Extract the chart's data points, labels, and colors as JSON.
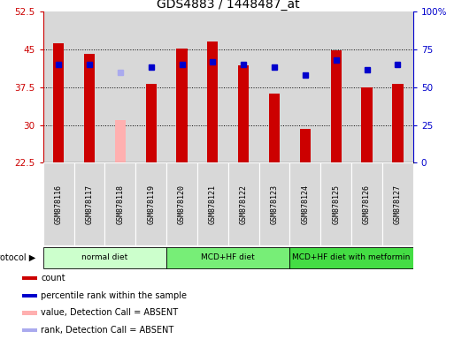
{
  "title": "GDS4883 / 1448487_at",
  "samples": [
    "GSM878116",
    "GSM878117",
    "GSM878118",
    "GSM878119",
    "GSM878120",
    "GSM878121",
    "GSM878122",
    "GSM878123",
    "GSM878124",
    "GSM878125",
    "GSM878126",
    "GSM878127"
  ],
  "count_values": [
    46.2,
    44.2,
    null,
    38.2,
    45.2,
    46.6,
    41.8,
    36.2,
    29.2,
    44.8,
    37.5,
    38.2
  ],
  "absent_count_values": [
    null,
    null,
    31.0,
    null,
    null,
    null,
    null,
    null,
    null,
    null,
    null,
    null
  ],
  "percentile_values": [
    42.0,
    42.0,
    null,
    41.5,
    42.0,
    42.5,
    42.0,
    41.5,
    40.0,
    43.0,
    41.0,
    42.0
  ],
  "absent_percentile_values": [
    null,
    null,
    40.5,
    null,
    null,
    null,
    null,
    null,
    null,
    null,
    null,
    null
  ],
  "ylim_left": [
    22.5,
    52.5
  ],
  "ylim_right": [
    0,
    100
  ],
  "yticks_left": [
    22.5,
    30,
    37.5,
    45,
    52.5
  ],
  "yticks_right": [
    0,
    25,
    50,
    75,
    100
  ],
  "ytick_labels_right": [
    "0",
    "25",
    "50",
    "75",
    "100%"
  ],
  "bar_width": 0.35,
  "red_color": "#cc0000",
  "pink_color": "#ffb0b0",
  "blue_color": "#0000cc",
  "light_blue_color": "#aaaaee",
  "col_bg_color": "#d8d8d8",
  "protocol_groups": [
    {
      "label": "normal diet",
      "samples_idx": [
        0,
        1,
        2,
        3
      ],
      "color": "#ccffcc"
    },
    {
      "label": "MCD+HF diet",
      "samples_idx": [
        4,
        5,
        6,
        7
      ],
      "color": "#77ee77"
    },
    {
      "label": "MCD+HF diet with metformin",
      "samples_idx": [
        8,
        9,
        10,
        11
      ],
      "color": "#44dd44"
    }
  ],
  "legend_items": [
    {
      "label": "count",
      "color": "#cc0000"
    },
    {
      "label": "percentile rank within the sample",
      "color": "#0000cc"
    },
    {
      "label": "value, Detection Call = ABSENT",
      "color": "#ffb0b0"
    },
    {
      "label": "rank, Detection Call = ABSENT",
      "color": "#aaaaee"
    }
  ]
}
